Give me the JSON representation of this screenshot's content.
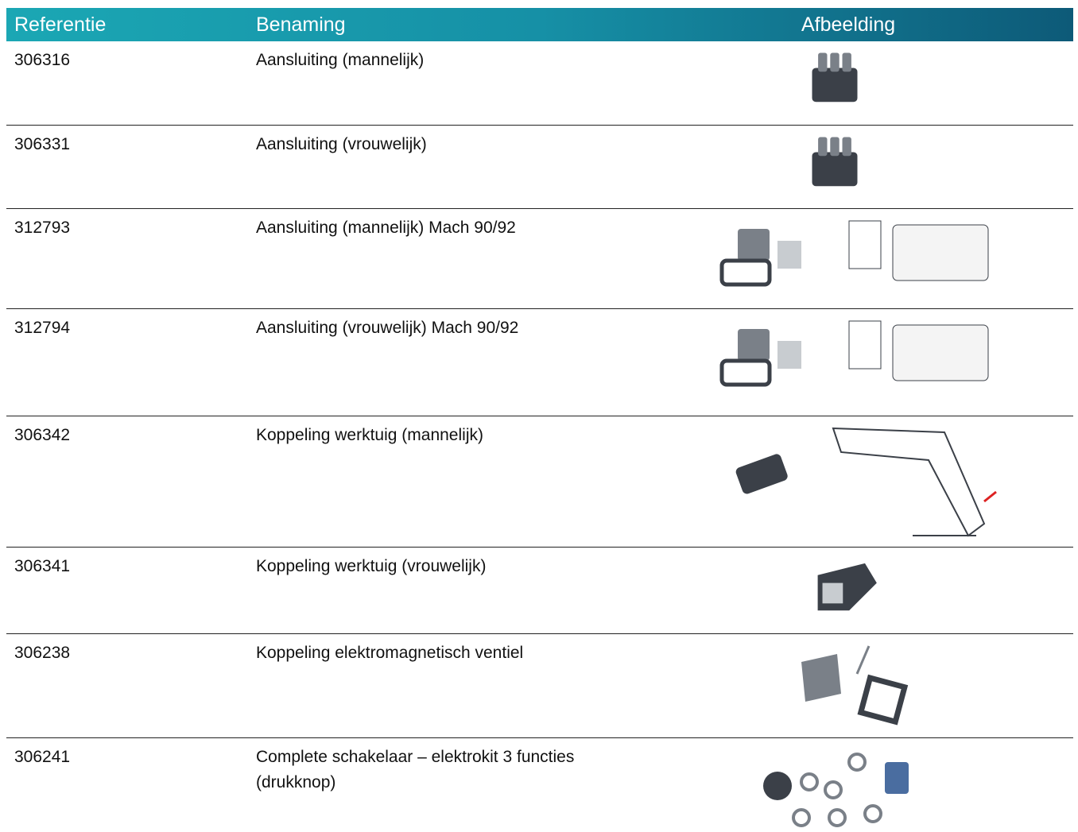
{
  "table": {
    "header": [
      "Referentie",
      "Benaming",
      "Afbeelding"
    ],
    "rows": [
      [
        "306316",
        "Aansluiting (mannelijk)"
      ],
      [
        "306331",
        "Aansluiting (vrouwelijk)"
      ],
      [
        "312793",
        "Aansluiting (mannelijk) Mach 90/92"
      ],
      [
        "312794",
        "Aansluiting (vrouwelijk) Mach 90/92"
      ],
      [
        "306342",
        "Koppeling werktuig (mannelijk)"
      ],
      [
        "306341",
        "Koppeling werktuig (vrouwelijk)"
      ],
      [
        "306238",
        "Koppeling elektromagnetisch ventiel"
      ],
      [
        "306241",
        "Complete schakelaar – elektrokit 3 functies (drukknop)"
      ]
    ]
  }
}
